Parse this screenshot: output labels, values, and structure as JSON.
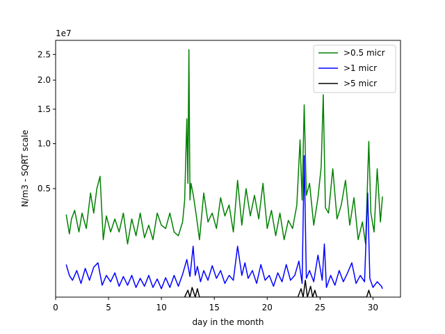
{
  "chart_data": {
    "type": "line",
    "xlabel": "day in the month",
    "ylabel": "N/m3 - SQRT scale",
    "offset_text": "1e7",
    "y_scale": "sqrt",
    "y_scale_factor": 10000000,
    "xlim": [
      0.0,
      32.6
    ],
    "ylim": [
      0.0,
      2.8
    ],
    "x_ticks": [
      0,
      5,
      10,
      15,
      20,
      25,
      30
    ],
    "y_ticks": [
      0.5,
      1.0,
      1.5,
      2.0,
      2.5
    ],
    "y_tick_labels": [
      "0.5",
      "1.0",
      "1.5",
      "2.0",
      "2.5"
    ],
    "grid": false,
    "legend_position": "top-right",
    "series": [
      {
        "name": ">0.5 micr",
        "color": "#008000",
        "x": [
          1.0,
          1.3,
          1.5,
          1.8,
          2.2,
          2.5,
          2.9,
          3.3,
          3.6,
          3.9,
          4.2,
          4.5,
          4.8,
          5.2,
          5.6,
          6.0,
          6.4,
          6.8,
          7.2,
          7.6,
          8.0,
          8.4,
          8.8,
          9.2,
          9.6,
          10.0,
          10.4,
          10.8,
          11.2,
          11.6,
          12.0,
          12.2,
          12.4,
          12.5,
          12.6,
          12.7,
          12.8,
          13.0,
          13.3,
          13.6,
          14.0,
          14.4,
          14.8,
          15.2,
          15.6,
          16.0,
          16.4,
          16.8,
          17.2,
          17.6,
          18.0,
          18.4,
          18.8,
          19.2,
          19.6,
          20.0,
          20.4,
          20.8,
          21.2,
          21.6,
          22.0,
          22.4,
          22.8,
          23.1,
          23.3,
          23.5,
          23.7,
          24.0,
          24.4,
          24.8,
          25.1,
          25.3,
          25.5,
          25.8,
          26.2,
          26.6,
          27.0,
          27.4,
          27.8,
          28.2,
          28.6,
          29.0,
          29.3,
          29.6,
          29.8,
          30.1,
          30.4,
          30.7,
          30.9
        ],
        "values": [
          0.29,
          0.17,
          0.26,
          0.32,
          0.18,
          0.3,
          0.2,
          0.46,
          0.3,
          0.5,
          0.62,
          0.14,
          0.28,
          0.18,
          0.26,
          0.18,
          0.3,
          0.12,
          0.26,
          0.16,
          0.3,
          0.15,
          0.22,
          0.14,
          0.3,
          0.22,
          0.2,
          0.3,
          0.18,
          0.16,
          0.24,
          0.4,
          1.35,
          0.55,
          2.6,
          0.4,
          0.55,
          0.45,
          0.28,
          0.14,
          0.46,
          0.24,
          0.3,
          0.2,
          0.42,
          0.28,
          0.36,
          0.18,
          0.58,
          0.22,
          0.5,
          0.28,
          0.44,
          0.26,
          0.55,
          0.2,
          0.32,
          0.16,
          0.3,
          0.14,
          0.25,
          0.2,
          0.36,
          1.05,
          0.4,
          1.57,
          0.44,
          0.55,
          0.22,
          0.42,
          0.72,
          1.74,
          0.34,
          0.3,
          0.7,
          0.26,
          0.36,
          0.58,
          0.22,
          0.42,
          0.14,
          0.24,
          0.12,
          1.03,
          0.3,
          0.18,
          0.7,
          0.24,
          0.43
        ]
      },
      {
        "name": ">1 micr",
        "color": "#0000ff",
        "x": [
          1.0,
          1.3,
          1.6,
          2.0,
          2.4,
          2.8,
          3.2,
          3.6,
          4.0,
          4.4,
          4.8,
          5.2,
          5.6,
          6.0,
          6.4,
          6.8,
          7.2,
          7.6,
          8.0,
          8.4,
          8.8,
          9.2,
          9.6,
          10.0,
          10.4,
          10.8,
          11.2,
          11.6,
          12.0,
          12.4,
          12.7,
          13.0,
          13.2,
          13.4,
          13.7,
          14.0,
          14.4,
          14.8,
          15.2,
          15.6,
          16.0,
          16.4,
          16.8,
          17.2,
          17.6,
          17.9,
          18.2,
          18.6,
          19.0,
          19.4,
          19.8,
          20.2,
          20.6,
          21.0,
          21.4,
          21.8,
          22.2,
          22.6,
          23.0,
          23.3,
          23.5,
          23.7,
          24.0,
          24.4,
          24.8,
          25.2,
          25.4,
          25.6,
          26.0,
          26.4,
          26.8,
          27.2,
          27.6,
          28.0,
          28.4,
          28.8,
          29.2,
          29.5,
          29.7,
          30.0,
          30.4,
          30.8,
          30.9
        ],
        "values": [
          0.045,
          0.02,
          0.012,
          0.03,
          0.008,
          0.035,
          0.012,
          0.038,
          0.05,
          0.006,
          0.02,
          0.01,
          0.025,
          0.005,
          0.018,
          0.006,
          0.02,
          0.004,
          0.015,
          0.005,
          0.02,
          0.004,
          0.014,
          0.003,
          0.016,
          0.004,
          0.02,
          0.005,
          0.022,
          0.06,
          0.018,
          0.11,
          0.02,
          0.04,
          0.01,
          0.03,
          0.012,
          0.042,
          0.015,
          0.03,
          0.008,
          0.02,
          0.012,
          0.11,
          0.02,
          0.05,
          0.015,
          0.03,
          0.008,
          0.045,
          0.012,
          0.02,
          0.005,
          0.025,
          0.01,
          0.045,
          0.012,
          0.02,
          0.055,
          0.008,
          0.85,
          0.015,
          0.03,
          0.01,
          0.075,
          0.012,
          0.12,
          0.004,
          0.02,
          0.006,
          0.03,
          0.01,
          0.025,
          0.05,
          0.008,
          0.02,
          0.01,
          0.46,
          0.015,
          0.004,
          0.01,
          0.005,
          0.003
        ]
      },
      {
        "name": ">5 micr",
        "color": "#000000",
        "x": [
          12.2,
          12.5,
          12.7,
          12.9,
          13.2,
          13.4,
          13.6,
          22.9,
          23.2,
          23.4,
          23.6,
          23.8,
          24.1,
          24.3,
          24.5,
          24.7,
          29.4,
          29.6,
          29.8
        ],
        "values": [
          0.0,
          0.002,
          0.0,
          0.004,
          0.0,
          0.003,
          0.0,
          0.0,
          0.003,
          0.0,
          0.012,
          0.0,
          0.005,
          0.0,
          0.002,
          0.0,
          0.0,
          0.002,
          0.0
        ]
      }
    ]
  }
}
